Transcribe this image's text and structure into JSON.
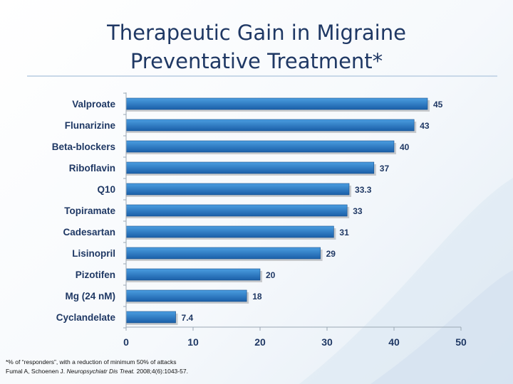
{
  "title_line1": "Therapeutic Gain in Migraine",
  "title_line2": "Preventative Treatment*",
  "colors": {
    "bar_light": "#4a9de0",
    "bar_dark": "#1a5fa8",
    "title": "#1f3864",
    "axis_text": "#1f3864"
  },
  "chart_data": {
    "type": "bar",
    "orientation": "horizontal",
    "categories": [
      "Valproate",
      "Flunarizine",
      "Beta-blockers",
      "Riboflavin",
      "Q10",
      "Topiramate",
      "Cadesartan",
      "Lisinopril",
      "Pizotifen",
      "Mg (24 nM)",
      "Cyclandelate"
    ],
    "values": [
      45,
      43,
      40,
      37,
      33.3,
      33,
      31,
      29,
      20,
      18,
      7.4
    ],
    "value_labels": [
      "45",
      "43",
      "40",
      "37",
      "33.3",
      "33",
      "31",
      "29",
      "20",
      "18",
      "7.4"
    ],
    "xlim": [
      0,
      50
    ],
    "x_ticks": [
      "0",
      "10",
      "20",
      "30",
      "40",
      "50"
    ],
    "grid": false,
    "legend": "none"
  },
  "footnote": {
    "line1": "*% of “responders”, with a reduction of minimum 50% of attacks",
    "line2_plain": "Fumal A, Schoenen J. ",
    "line2_italic": "Neuropsychiatr Dis Treat.",
    "line2_end": " 2008;4(6):1043-57."
  }
}
